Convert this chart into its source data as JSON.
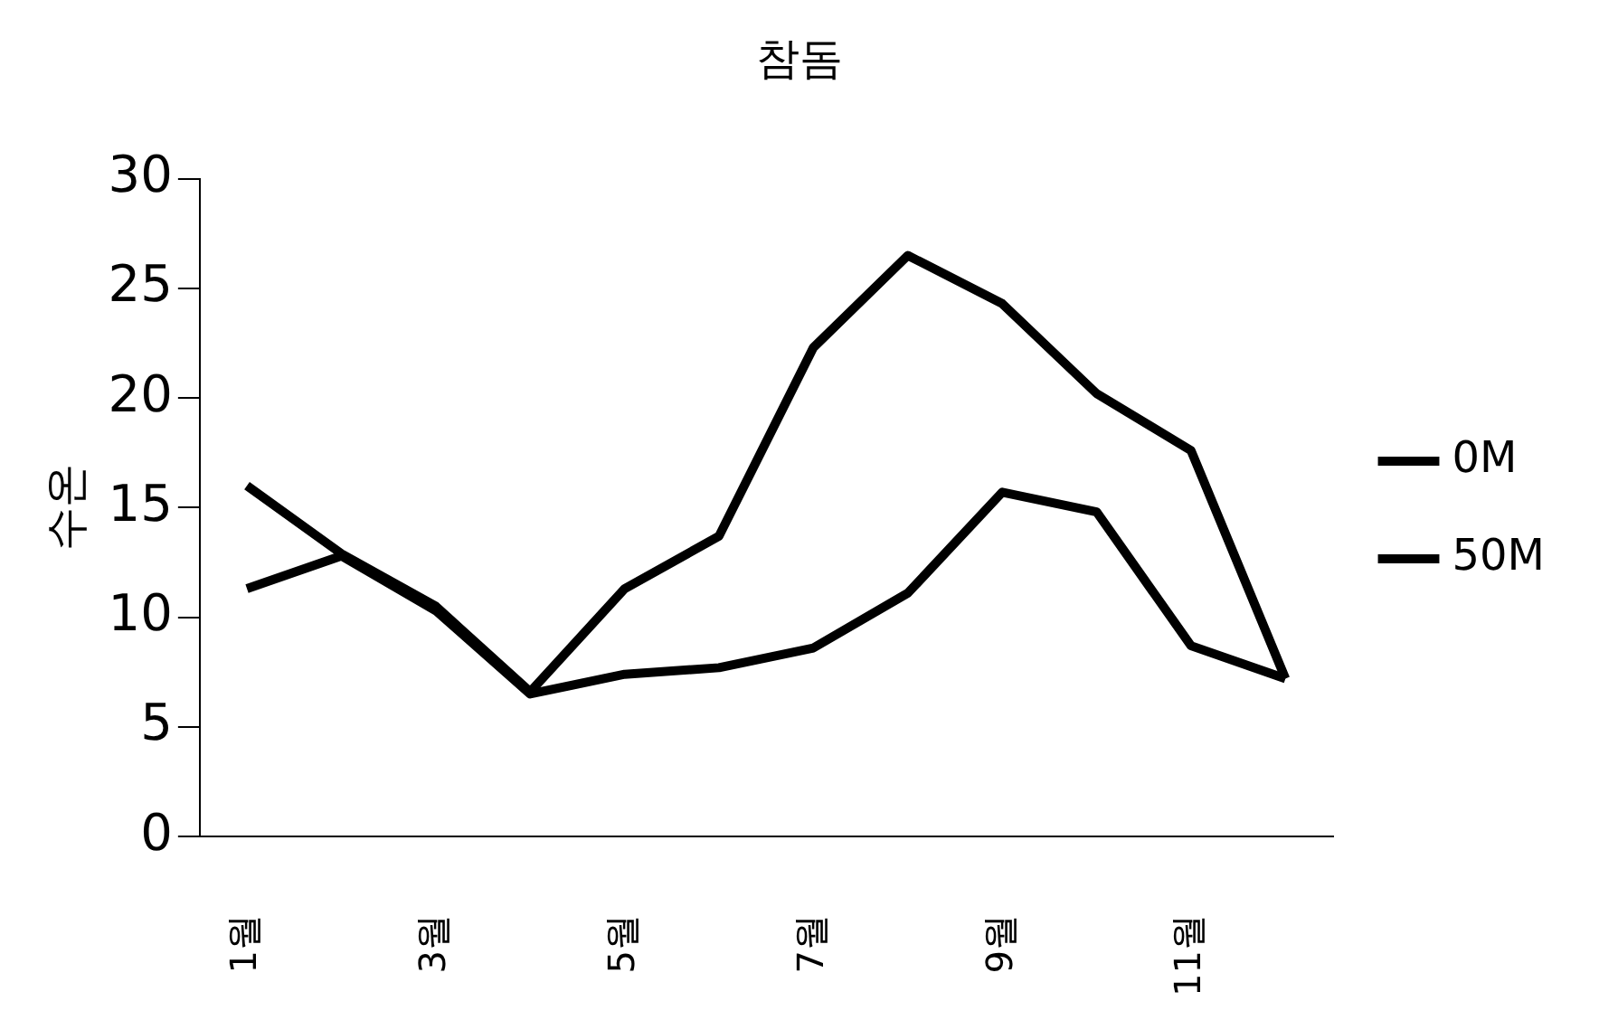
{
  "chart_data": {
    "type": "line",
    "title": "참돔",
    "ylabel": "수온",
    "categories": [
      "1월",
      null,
      "3월",
      null,
      "5월",
      null,
      "7월",
      null,
      "9월",
      null,
      "11월",
      null
    ],
    "series": [
      {
        "name": "0M",
        "color": "#000000",
        "values": [
          16.0,
          12.9,
          10.5,
          6.6,
          11.3,
          13.7,
          22.3,
          26.5,
          24.3,
          20.2,
          17.6,
          7.2
        ]
      },
      {
        "name": "50M",
        "color": "#000000",
        "values": [
          11.3,
          12.8,
          10.3,
          6.5,
          7.4,
          7.7,
          8.6,
          11.1,
          15.7,
          14.8,
          8.7,
          7.2
        ]
      }
    ],
    "ylim": [
      0,
      30
    ],
    "yticks": [
      0,
      5,
      10,
      15,
      20,
      25,
      30
    ],
    "grid": false,
    "legend": "right",
    "marker": "none",
    "line_style": "solid"
  }
}
